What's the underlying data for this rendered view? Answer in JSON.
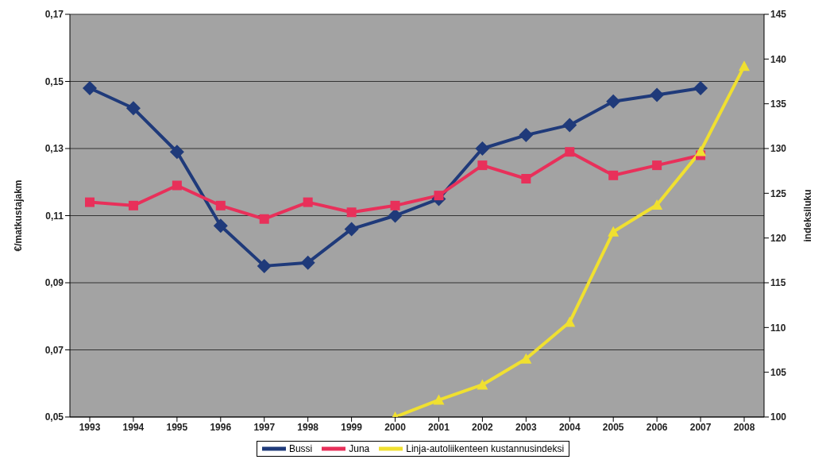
{
  "chart_data": {
    "type": "line",
    "ylabel": "€/matkustajakm",
    "y2label": "indeksiluku",
    "categories": [
      "1993",
      "1994",
      "1995",
      "1996",
      "1997",
      "1998",
      "1999",
      "2000",
      "2001",
      "2002",
      "2003",
      "2004",
      "2005",
      "2006",
      "2007",
      "2008"
    ],
    "series": [
      {
        "name": "Bussi",
        "color": "#1f3a7a",
        "marker": "diamond",
        "values": [
          0.148,
          0.142,
          0.129,
          0.107,
          0.095,
          0.096,
          0.106,
          0.11,
          0.115,
          0.13,
          0.134,
          0.137,
          0.144,
          0.146,
          0.148,
          null
        ]
      },
      {
        "name": "Juna",
        "color": "#e8305a",
        "marker": "square",
        "values": [
          0.114,
          0.113,
          0.119,
          0.113,
          0.109,
          0.114,
          0.111,
          0.113,
          0.116,
          0.125,
          0.121,
          0.129,
          0.122,
          0.125,
          0.128,
          null
        ]
      },
      {
        "name": "Linja-autoliikenteen kustannusindeksi",
        "color": "#f0e030",
        "marker": "triangle",
        "axis": "y2",
        "values": [
          null,
          null,
          null,
          null,
          null,
          null,
          null,
          100,
          101.9,
          103.6,
          106.5,
          110.6,
          120.7,
          123.7,
          129.7,
          139.2
        ]
      }
    ],
    "ylim": [
      0.05,
      0.17
    ],
    "yticks": [
      {
        "value": 0.05,
        "label": "0,05"
      },
      {
        "value": 0.07,
        "label": "0,07"
      },
      {
        "value": 0.09,
        "label": "0,09"
      },
      {
        "value": 0.11,
        "label": "0,11"
      },
      {
        "value": 0.13,
        "label": "0,13"
      },
      {
        "value": 0.15,
        "label": "0,15"
      },
      {
        "value": 0.17,
        "label": "0,17"
      }
    ],
    "y2lim": [
      100,
      145
    ],
    "y2ticks": [
      100,
      105,
      110,
      115,
      120,
      125,
      130,
      135,
      140,
      145
    ],
    "grid": "y",
    "legend": "bottom",
    "line_style": "solid"
  }
}
